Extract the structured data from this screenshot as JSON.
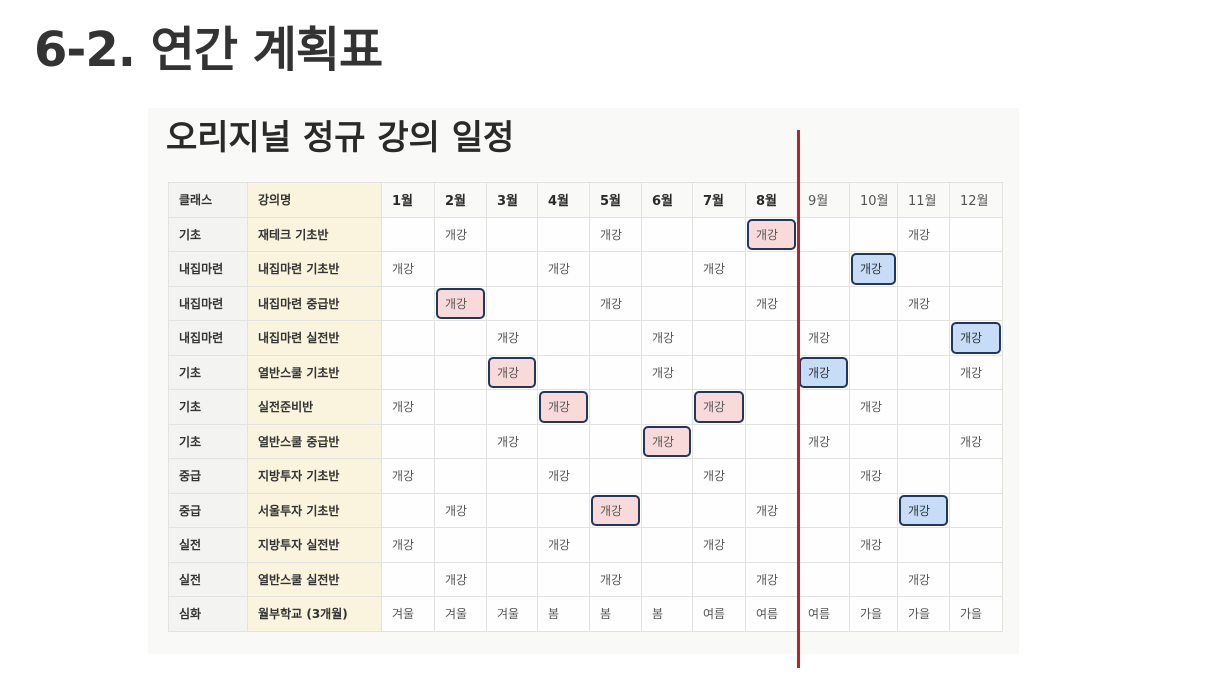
{
  "page_heading": "6-2. 연간 계획표",
  "panel_title": "오리지널 정규 강의 일정",
  "table": {
    "header_class": "클래스",
    "header_name": "강의명",
    "months": [
      "1월",
      "2월",
      "3월",
      "4월",
      "5월",
      "6월",
      "7월",
      "8월",
      "9월",
      "10월",
      "11월",
      "12월"
    ],
    "rows": [
      {
        "class": "기초",
        "name": "재테크 기초반",
        "cells": [
          "",
          "개강",
          "",
          "",
          "개강",
          "",
          "",
          "개강",
          "",
          "",
          "개강",
          ""
        ]
      },
      {
        "class": "내집마련",
        "name": "내집마련 기초반",
        "cells": [
          "개강",
          "",
          "",
          "개강",
          "",
          "",
          "개강",
          "",
          "",
          "개강",
          "",
          ""
        ]
      },
      {
        "class": "내집마련",
        "name": "내집마련 중급반",
        "cells": [
          "",
          "개강",
          "",
          "",
          "개강",
          "",
          "",
          "개강",
          "",
          "",
          "개강",
          ""
        ]
      },
      {
        "class": "내집마련",
        "name": "내집마련 실전반",
        "cells": [
          "",
          "",
          "개강",
          "",
          "",
          "개강",
          "",
          "",
          "개강",
          "",
          "",
          "개강"
        ]
      },
      {
        "class": "기초",
        "name": "열반스쿨 기초반",
        "cells": [
          "",
          "",
          "개강",
          "",
          "",
          "개강",
          "",
          "",
          "개강",
          "",
          "",
          "개강"
        ]
      },
      {
        "class": "기초",
        "name": "실전준비반",
        "cells": [
          "개강",
          "",
          "",
          "개강",
          "",
          "",
          "개강",
          "",
          "",
          "개강",
          "",
          ""
        ]
      },
      {
        "class": "기초",
        "name": "열반스쿨 중급반",
        "cells": [
          "",
          "",
          "개강",
          "",
          "",
          "개강",
          "",
          "",
          "개강",
          "",
          "",
          "개강"
        ]
      },
      {
        "class": "중급",
        "name": "지방투자 기초반",
        "cells": [
          "개강",
          "",
          "",
          "개강",
          "",
          "",
          "개강",
          "",
          "",
          "개강",
          "",
          ""
        ]
      },
      {
        "class": "중급",
        "name": "서울투자 기초반",
        "cells": [
          "",
          "개강",
          "",
          "",
          "개강",
          "",
          "",
          "개강",
          "",
          "",
          "개강",
          ""
        ]
      },
      {
        "class": "실전",
        "name": "지방투자 실전반",
        "cells": [
          "개강",
          "",
          "",
          "개강",
          "",
          "",
          "개강",
          "",
          "",
          "개강",
          "",
          ""
        ]
      },
      {
        "class": "실전",
        "name": "열반스쿨 실전반",
        "cells": [
          "",
          "개강",
          "",
          "",
          "개강",
          "",
          "",
          "개강",
          "",
          "",
          "개강",
          ""
        ]
      },
      {
        "class": "심화",
        "name": "월부학교 (3개월)",
        "cells": [
          "겨울",
          "겨울",
          "겨울",
          "봄",
          "봄",
          "봄",
          "여름",
          "여름",
          "여름",
          "가을",
          "가을",
          "가을"
        ]
      }
    ],
    "highlights": [
      {
        "row": 0,
        "col": 7,
        "color": "pink"
      },
      {
        "row": 1,
        "col": 9,
        "color": "blue"
      },
      {
        "row": 2,
        "col": 1,
        "color": "pink"
      },
      {
        "row": 3,
        "col": 11,
        "color": "blue"
      },
      {
        "row": 4,
        "col": 2,
        "color": "pink"
      },
      {
        "row": 4,
        "col": 8,
        "color": "blue"
      },
      {
        "row": 5,
        "col": 3,
        "color": "pink"
      },
      {
        "row": 5,
        "col": 6,
        "color": "pink"
      },
      {
        "row": 6,
        "col": 5,
        "color": "pink"
      },
      {
        "row": 8,
        "col": 4,
        "color": "pink"
      },
      {
        "row": 8,
        "col": 10,
        "color": "blue"
      }
    ],
    "current_month_marker_after": "8월"
  },
  "colors": {
    "highlight_pink": "#f9dada",
    "highlight_blue": "#c6dcf7",
    "highlight_border": "#22385a",
    "divider": "#b5252c"
  }
}
